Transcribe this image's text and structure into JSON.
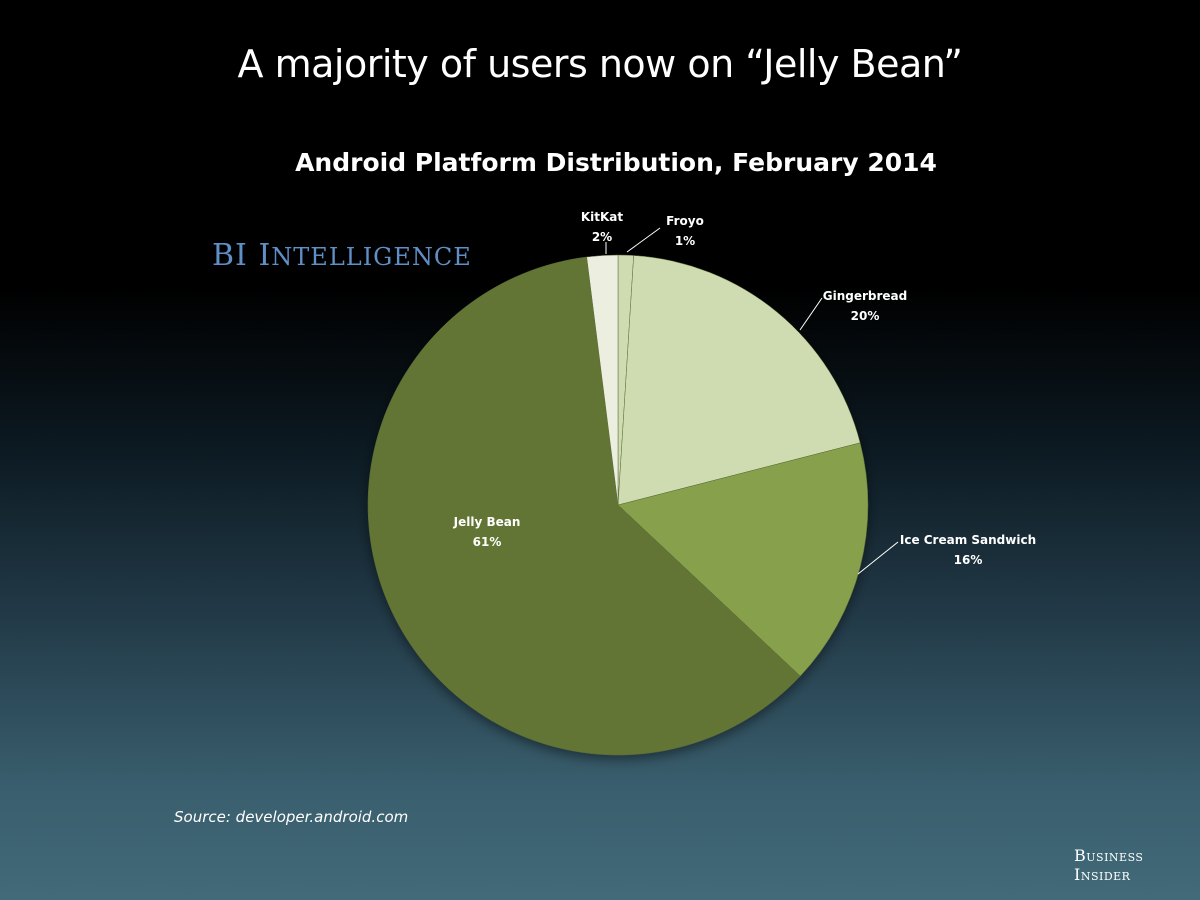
{
  "slide": {
    "title": "A majority of users now on “Jelly Bean”",
    "source": "Source: developer.android.com"
  },
  "brand": {
    "bi_logo": "BI Intelligence",
    "bi_logo_parts": [
      "B",
      "I ",
      "I",
      "NTELLIGENCE"
    ],
    "publisher_logo_lines": [
      "Business",
      "Insider"
    ]
  },
  "chart_data": {
    "type": "pie",
    "title": "Android Platform Distribution, February 2014",
    "categories": [
      "Froyo",
      "Gingerbread",
      "Ice Cream Sandwich",
      "Jelly Bean",
      "KitKat"
    ],
    "values": [
      1,
      20,
      16,
      61,
      2
    ],
    "value_labels": [
      "1%",
      "20%",
      "16%",
      "61%",
      "2%"
    ],
    "colors": [
      "#cfdcb1",
      "#cfdcb1",
      "#87a04c",
      "#627434",
      "#eceee0"
    ],
    "start_angle": "12 o'clock, clockwise",
    "legend": "none (data labels with leader lines)"
  }
}
